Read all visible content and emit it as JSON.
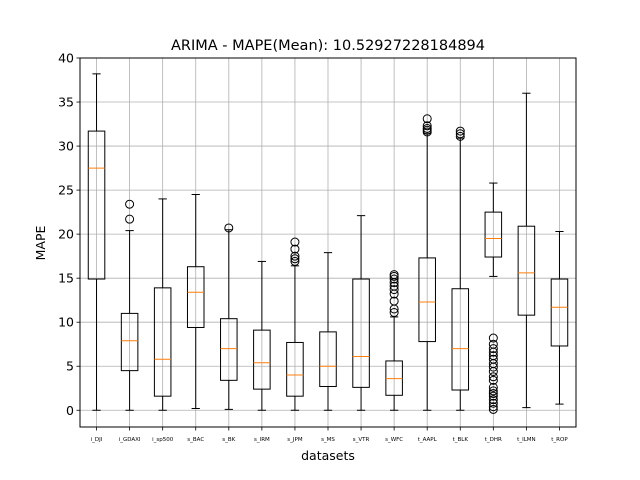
{
  "chart_data": {
    "type": "boxplot",
    "title": "ARIMA - MAPE(Mean): 10.52927228184894",
    "xlabel": "datasets",
    "ylabel": "MAPE",
    "ylim": [
      -1.9,
      40
    ],
    "yticks": [
      0,
      5,
      10,
      15,
      20,
      25,
      30,
      35,
      40
    ],
    "grid": true,
    "colors": {
      "box": "#000000",
      "median": "#ff7f0e",
      "grid": "#b0b0b0"
    },
    "categories": [
      "i_DJI",
      "i_GDAXI",
      "i_sp500",
      "s_BAC",
      "s_BK",
      "s_IRM",
      "s_JPM",
      "s_MS",
      "s_VTR",
      "s_WFC",
      "t_AAPL",
      "t_BLK",
      "t_DHR",
      "t_ILMN",
      "t_ROP"
    ],
    "boxes": [
      {
        "whislo": 0.0,
        "q1": 14.9,
        "med": 27.5,
        "q3": 31.7,
        "whishi": 38.2,
        "fliers": []
      },
      {
        "whislo": 0.0,
        "q1": 4.5,
        "med": 7.9,
        "q3": 11.0,
        "whishi": 20.4,
        "fliers": [
          21.7,
          23.4
        ]
      },
      {
        "whislo": 0.0,
        "q1": 1.6,
        "med": 5.8,
        "q3": 13.9,
        "whishi": 24.0,
        "fliers": []
      },
      {
        "whislo": 0.2,
        "q1": 9.4,
        "med": 13.4,
        "q3": 16.3,
        "whishi": 24.5,
        "fliers": []
      },
      {
        "whislo": 0.1,
        "q1": 3.4,
        "med": 7.0,
        "q3": 10.4,
        "whishi": 20.5,
        "fliers": [
          20.7
        ]
      },
      {
        "whislo": 0.0,
        "q1": 2.4,
        "med": 5.4,
        "q3": 9.1,
        "whishi": 16.9,
        "fliers": []
      },
      {
        "whislo": 0.0,
        "q1": 1.6,
        "med": 4.0,
        "q3": 7.7,
        "whishi": 16.4,
        "fliers": [
          16.9,
          17.2,
          17.5,
          18.3,
          19.1
        ]
      },
      {
        "whislo": 0.0,
        "q1": 2.7,
        "med": 5.0,
        "q3": 8.9,
        "whishi": 17.9,
        "fliers": []
      },
      {
        "whislo": 0.0,
        "q1": 2.6,
        "med": 6.1,
        "q3": 14.9,
        "whishi": 22.1,
        "fliers": []
      },
      {
        "whislo": 0.0,
        "q1": 1.7,
        "med": 3.6,
        "q3": 5.6,
        "whishi": 10.6,
        "fliers": [
          11.1,
          11.5,
          12.4,
          13.2,
          13.7,
          14.1,
          14.5,
          14.9,
          15.2,
          15.4
        ]
      },
      {
        "whislo": 0.0,
        "q1": 7.8,
        "med": 12.3,
        "q3": 17.3,
        "whishi": 31.4,
        "fliers": [
          31.6,
          31.8,
          32.0,
          32.3,
          33.1
        ]
      },
      {
        "whislo": 0.0,
        "q1": 2.3,
        "med": 7.0,
        "q3": 13.8,
        "whishi": 30.9,
        "fliers": [
          31.1,
          31.4,
          31.7
        ]
      },
      {
        "whislo": 15.2,
        "q1": 17.4,
        "med": 19.5,
        "q3": 22.5,
        "whishi": 25.8,
        "fliers": [
          0.1,
          0.4,
          0.8,
          1.2,
          1.6,
          1.9,
          2.2,
          2.6,
          3.4,
          3.8,
          4.4,
          4.9,
          5.3,
          5.8,
          6.2,
          6.6,
          7.0,
          7.5,
          8.2
        ]
      },
      {
        "whislo": 0.3,
        "q1": 10.8,
        "med": 15.6,
        "q3": 20.9,
        "whishi": 36.0,
        "fliers": []
      },
      {
        "whislo": 0.7,
        "q1": 7.3,
        "med": 11.7,
        "q3": 14.9,
        "whishi": 20.3,
        "fliers": []
      }
    ]
  }
}
